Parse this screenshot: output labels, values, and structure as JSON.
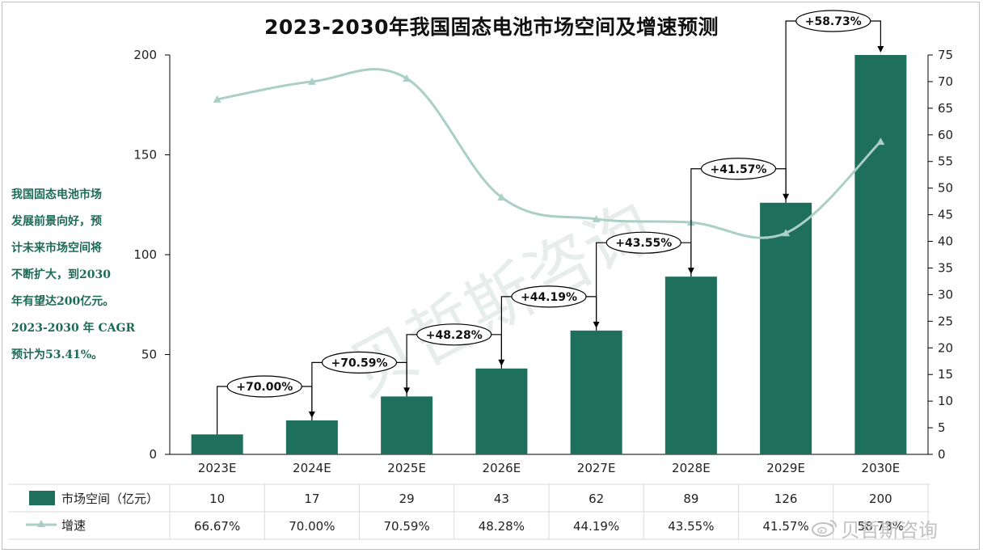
{
  "title": "2023-2030年我国固态电池市场空间及增速预测",
  "side_note": [
    "我国固态电池市场",
    "发展前景向好，预",
    "计未来市场空间将",
    "不断扩大，到2030",
    "年有望达200亿元。",
    "2023-2030 年 CAGR",
    "预计为53.41%。"
  ],
  "watermark": "贝哲斯咨询",
  "weibo_watermark": "贝哲斯咨询",
  "chart_data": {
    "type": "bar",
    "categories": [
      "2023E",
      "2024E",
      "2025E",
      "2026E",
      "2027E",
      "2028E",
      "2029E",
      "2030E"
    ],
    "series": [
      {
        "name": "市场空间（亿元）",
        "type": "bar",
        "axis": "left",
        "color": "#1e6f5c",
        "values": [
          10,
          17,
          29,
          43,
          62,
          89,
          126,
          200
        ],
        "labels": [
          "10",
          "17",
          "29",
          "43",
          "62",
          "89",
          "126",
          "200"
        ]
      },
      {
        "name": "增速",
        "type": "line",
        "axis": "right",
        "color": "#a9cfc6",
        "values": [
          66.67,
          70.0,
          70.59,
          48.28,
          44.19,
          43.55,
          41.57,
          58.73
        ],
        "labels": [
          "66.67%",
          "70.00%",
          "70.59%",
          "48.28%",
          "44.19%",
          "43.55%",
          "41.57%",
          "58.73%"
        ]
      }
    ],
    "annotations": [
      "+70.00%",
      "+70.59%",
      "+48.28%",
      "+44.19%",
      "+43.55%",
      "+41.57%",
      "+58.73%"
    ],
    "y_left": {
      "min": 0,
      "max": 200,
      "ticks": [
        "0",
        "50",
        "100",
        "150",
        "200"
      ]
    },
    "y_right": {
      "min": 0,
      "max": 75,
      "ticks": [
        "0",
        "5",
        "10",
        "15",
        "20",
        "25",
        "30",
        "35",
        "40",
        "45",
        "50",
        "55",
        "60",
        "65",
        "70",
        "75"
      ]
    },
    "grid": false,
    "legend": "bottom-table"
  }
}
